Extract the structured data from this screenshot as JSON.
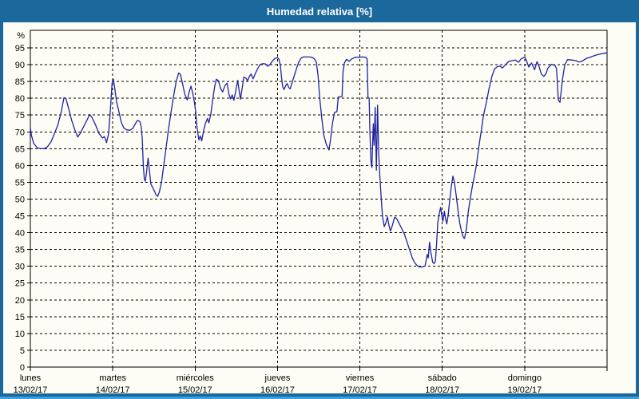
{
  "window": {
    "title": "Humedad relativa [%]"
  },
  "colors": {
    "frame": "#1a689c",
    "frame_bottom_edge": "#3fa0e0",
    "titlebar_text": "#ffffff",
    "content_bg": "#fdfdf5",
    "grid": "#000000",
    "axis": "#000000",
    "line": "#2121a3",
    "label_text": "#000000"
  },
  "chart_data": {
    "type": "line",
    "title": "Humedad relativa [%]",
    "y_unit_label": "%",
    "y_ticks": [
      0,
      5,
      10,
      15,
      20,
      25,
      30,
      35,
      40,
      45,
      50,
      55,
      60,
      65,
      70,
      75,
      80,
      85,
      90,
      95
    ],
    "ylim": [
      0,
      100.2
    ],
    "grid": "dashed",
    "x_days": [
      {
        "name": "lunes",
        "date": "13/02/17"
      },
      {
        "name": "martes",
        "date": "14/02/17"
      },
      {
        "name": "miércoles",
        "date": "15/02/17"
      },
      {
        "name": "jueves",
        "date": "16/02/17"
      },
      {
        "name": "viernes",
        "date": "17/02/17"
      },
      {
        "name": "sábado",
        "date": "18/02/17"
      },
      {
        "name": "domingo",
        "date": "19/02/17"
      }
    ],
    "hours_per_day": 24,
    "x_total_hours": 168,
    "series": [
      {
        "name": "humedad_relativa",
        "points": [
          [
            0,
            71.3
          ],
          [
            0.3,
            69
          ],
          [
            1,
            66.5
          ],
          [
            2,
            65.3
          ],
          [
            3,
            65
          ],
          [
            4,
            65
          ],
          [
            5,
            65.6
          ],
          [
            6,
            67
          ],
          [
            7,
            69.5
          ],
          [
            8,
            72
          ],
          [
            9,
            76
          ],
          [
            9.8,
            80.2
          ],
          [
            10.4,
            79.8
          ],
          [
            11,
            77.5
          ],
          [
            12,
            73.5
          ],
          [
            13,
            70.5
          ],
          [
            13.8,
            68.5
          ],
          [
            14.5,
            69.5
          ],
          [
            15.5,
            71.5
          ],
          [
            16.5,
            73.5
          ],
          [
            17.3,
            75.2
          ],
          [
            18,
            74.2
          ],
          [
            19,
            72
          ],
          [
            20,
            69.5
          ],
          [
            21,
            68.2
          ],
          [
            21.6,
            68.6
          ],
          [
            22.2,
            66.8
          ],
          [
            22.8,
            69.5
          ],
          [
            23.4,
            78
          ],
          [
            23.8,
            84.5
          ],
          [
            24.2,
            85.6
          ],
          [
            24.6,
            83
          ],
          [
            25.1,
            79
          ],
          [
            25.8,
            76
          ],
          [
            26.5,
            72.8
          ],
          [
            27.2,
            71.2
          ],
          [
            28,
            70.6
          ],
          [
            29,
            70.5
          ],
          [
            29.8,
            71
          ],
          [
            30.5,
            72.3
          ],
          [
            31.2,
            73.4
          ],
          [
            31.9,
            73.1
          ],
          [
            32.3,
            71.5
          ],
          [
            32.6,
            68
          ],
          [
            32.9,
            60
          ],
          [
            33.2,
            56
          ],
          [
            33.5,
            55.3
          ],
          [
            33.9,
            58.5
          ],
          [
            34.3,
            62.2
          ],
          [
            34.7,
            58.5
          ],
          [
            35.1,
            54.5
          ],
          [
            35.6,
            53.5
          ],
          [
            36.1,
            52.5
          ],
          [
            36.6,
            51.3
          ],
          [
            37.1,
            50.8
          ],
          [
            37.6,
            52.2
          ],
          [
            38.2,
            55
          ],
          [
            38.8,
            59.5
          ],
          [
            39.5,
            65
          ],
          [
            40.2,
            70.5
          ],
          [
            41,
            76
          ],
          [
            41.8,
            81
          ],
          [
            42.5,
            85
          ],
          [
            43.2,
            87.5
          ],
          [
            43.7,
            87.2
          ],
          [
            44.3,
            84.5
          ],
          [
            45,
            81.2
          ],
          [
            45.7,
            79.5
          ],
          [
            46.3,
            82
          ],
          [
            46.8,
            83.6
          ],
          [
            47.3,
            81.5
          ],
          [
            47.8,
            78.8
          ],
          [
            48.1,
            76.5
          ],
          [
            48.5,
            72
          ],
          [
            48.8,
            69.5
          ],
          [
            49.1,
            67.6
          ],
          [
            49.5,
            68.8
          ],
          [
            49.9,
            67.3
          ],
          [
            50.5,
            70.5
          ],
          [
            51,
            72.5
          ],
          [
            51.6,
            74
          ],
          [
            52,
            72.7
          ],
          [
            52.6,
            75.5
          ],
          [
            53.1,
            79.5
          ],
          [
            53.7,
            83.5
          ],
          [
            54.2,
            85.7
          ],
          [
            54.8,
            85.2
          ],
          [
            55.4,
            83
          ],
          [
            56,
            81.9
          ],
          [
            56.7,
            83.8
          ],
          [
            57.3,
            84.5
          ],
          [
            57.9,
            81
          ],
          [
            58.3,
            79.8
          ],
          [
            58.8,
            81
          ],
          [
            59.3,
            79.4
          ],
          [
            59.9,
            82.5
          ],
          [
            60.4,
            85.3
          ],
          [
            60.9,
            81.8
          ],
          [
            61.2,
            79.7
          ],
          [
            61.7,
            83
          ],
          [
            62.2,
            86.3
          ],
          [
            62.8,
            86
          ],
          [
            63.3,
            85.2
          ],
          [
            63.8,
            86.5
          ],
          [
            64.3,
            87.2
          ],
          [
            64.9,
            85.8
          ],
          [
            65.6,
            87.5
          ],
          [
            66.3,
            89
          ],
          [
            67,
            90.1
          ],
          [
            67.8,
            90.3
          ],
          [
            68.5,
            90.2
          ],
          [
            69.2,
            89.5
          ],
          [
            69.9,
            90.2
          ],
          [
            70.6,
            91.2
          ],
          [
            71.3,
            91.9
          ],
          [
            72,
            92.1
          ],
          [
            72.4,
            91.7
          ],
          [
            72.8,
            90
          ],
          [
            73.2,
            86
          ],
          [
            73.5,
            83.5
          ],
          [
            73.9,
            82.6
          ],
          [
            74.4,
            83.8
          ],
          [
            74.8,
            84.4
          ],
          [
            75.3,
            83.2
          ],
          [
            75.7,
            82.8
          ],
          [
            76.2,
            84.5
          ],
          [
            76.8,
            86.5
          ],
          [
            77.4,
            88.4
          ],
          [
            78.1,
            90.5
          ],
          [
            78.9,
            92
          ],
          [
            79.6,
            92.3
          ],
          [
            80.5,
            92.3
          ],
          [
            81.3,
            92.3
          ],
          [
            82,
            92.2
          ],
          [
            82.7,
            91.8
          ],
          [
            83.3,
            90.8
          ],
          [
            83.8,
            87
          ],
          [
            84.3,
            80
          ],
          [
            84.9,
            74
          ],
          [
            85.5,
            69
          ],
          [
            86.2,
            66.3
          ],
          [
            87,
            64.6
          ],
          [
            87.5,
            68
          ],
          [
            88,
            72.5
          ],
          [
            88.6,
            75.8
          ],
          [
            89.3,
            76
          ],
          [
            89.7,
            80.4
          ],
          [
            90.8,
            80.5
          ],
          [
            91.1,
            88
          ],
          [
            91.5,
            90.5
          ],
          [
            92.1,
            91.6
          ],
          [
            92.9,
            91
          ],
          [
            93.6,
            91.7
          ],
          [
            94.6,
            92.2
          ],
          [
            95.6,
            92.2
          ],
          [
            96.6,
            92.3
          ],
          [
            97.7,
            92.2
          ],
          [
            98.1,
            91.8
          ],
          [
            98.35,
            80.3
          ],
          [
            98.7,
            80
          ],
          [
            98.9,
            71
          ],
          [
            99.2,
            61.5
          ],
          [
            99.5,
            59.4
          ],
          [
            99.9,
            72.4
          ],
          [
            100.15,
            66
          ],
          [
            100.45,
            77.3
          ],
          [
            100.8,
            58.6
          ],
          [
            101.15,
            78
          ],
          [
            101.5,
            63
          ],
          [
            101.8,
            57
          ],
          [
            102.2,
            50.5
          ],
          [
            102.6,
            44.8
          ],
          [
            103.1,
            41.8
          ],
          [
            103.6,
            43
          ],
          [
            104,
            44.7
          ],
          [
            104.5,
            42
          ],
          [
            104.9,
            40.5
          ],
          [
            105.5,
            42.3
          ],
          [
            106.1,
            44.6
          ],
          [
            106.7,
            44.2
          ],
          [
            107.4,
            42.8
          ],
          [
            108.2,
            41.2
          ],
          [
            109,
            39.5
          ],
          [
            109.8,
            37
          ],
          [
            110.6,
            34.5
          ],
          [
            111.3,
            32.4
          ],
          [
            112,
            31
          ],
          [
            112.7,
            30.2
          ],
          [
            113.4,
            29.8
          ],
          [
            114.2,
            29.8
          ],
          [
            115,
            30.1
          ],
          [
            115.6,
            33.5
          ],
          [
            115.9,
            32.5
          ],
          [
            116.3,
            37.2
          ],
          [
            116.7,
            34
          ],
          [
            117.2,
            31.2
          ],
          [
            117.6,
            30.8
          ],
          [
            118,
            31.5
          ],
          [
            118.3,
            36
          ],
          [
            118.7,
            43
          ],
          [
            119.1,
            45.5
          ],
          [
            119.5,
            47.5
          ],
          [
            119.9,
            44.8
          ],
          [
            120.2,
            43.4
          ],
          [
            120.6,
            46.4
          ],
          [
            121,
            44
          ],
          [
            121.3,
            42.6
          ],
          [
            121.7,
            45
          ],
          [
            122.1,
            49
          ],
          [
            122.6,
            53.5
          ],
          [
            123.1,
            56.8
          ],
          [
            123.5,
            55.2
          ],
          [
            124,
            51.5
          ],
          [
            124.6,
            46.5
          ],
          [
            125.1,
            42.8
          ],
          [
            125.7,
            40
          ],
          [
            126.2,
            38.5
          ],
          [
            126.5,
            38.3
          ],
          [
            127,
            41
          ],
          [
            127.6,
            46.5
          ],
          [
            128.2,
            50.5
          ],
          [
            128.8,
            54
          ],
          [
            129.4,
            57
          ],
          [
            130,
            60.5
          ],
          [
            130.6,
            65.3
          ],
          [
            131.3,
            70
          ],
          [
            132,
            74.9
          ],
          [
            132.8,
            78.5
          ],
          [
            133.6,
            82.8
          ],
          [
            134.4,
            86.3
          ],
          [
            135.2,
            88.7
          ],
          [
            136,
            89.4
          ],
          [
            136.8,
            89.6
          ],
          [
            137.5,
            89
          ],
          [
            138.4,
            90
          ],
          [
            139.4,
            91
          ],
          [
            140.4,
            91.2
          ],
          [
            141.3,
            91.4
          ],
          [
            142.2,
            90.7
          ],
          [
            143,
            91.8
          ],
          [
            144,
            92.2
          ],
          [
            144.4,
            91.5
          ],
          [
            145.2,
            89.3
          ],
          [
            146,
            90.5
          ],
          [
            146.9,
            88.5
          ],
          [
            147.6,
            90.9
          ],
          [
            148.2,
            89.5
          ],
          [
            148.8,
            87.3
          ],
          [
            149.6,
            86.5
          ],
          [
            150.3,
            87.5
          ],
          [
            150.7,
            88.9
          ],
          [
            151.8,
            90.1
          ],
          [
            152.8,
            89.8
          ],
          [
            153.3,
            88.8
          ],
          [
            153.8,
            79.5
          ],
          [
            154.3,
            78.8
          ],
          [
            155,
            85.5
          ],
          [
            155.7,
            90
          ],
          [
            156.5,
            91.5
          ],
          [
            157.7,
            91.4
          ],
          [
            158.9,
            91.2
          ],
          [
            159.8,
            90.8
          ],
          [
            160.7,
            91
          ],
          [
            162,
            91.9
          ],
          [
            163.3,
            92.3
          ],
          [
            164.3,
            92.7
          ],
          [
            165.3,
            93
          ],
          [
            166.2,
            93.2
          ],
          [
            167.1,
            93.4
          ],
          [
            168,
            93.5
          ]
        ]
      }
    ]
  }
}
